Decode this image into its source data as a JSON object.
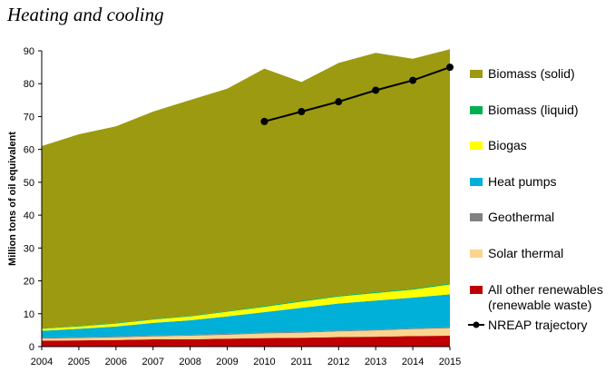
{
  "heading": "Heating and cooling",
  "chart_data": {
    "type": "area",
    "title": "",
    "ylabel": "Million tons of oil equivalent",
    "xlabel": "",
    "ylim": [
      0,
      90
    ],
    "yticks": [
      0,
      10,
      20,
      30,
      40,
      50,
      60,
      70,
      80,
      90
    ],
    "grid": false,
    "legend_position": "right",
    "stacked": true,
    "categories": [
      "2004",
      "2005",
      "2006",
      "2007",
      "2008",
      "2009",
      "2010",
      "2011",
      "2012",
      "2013",
      "2014",
      "2015"
    ],
    "series": [
      {
        "name": "All other renewables (renewable waste)",
        "color": "#c00000",
        "values": [
          1.8,
          1.9,
          2.0,
          2.2,
          2.2,
          2.4,
          2.6,
          2.7,
          2.9,
          3.0,
          3.2,
          3.3
        ]
      },
      {
        "name": "Solar thermal",
        "color": "#fbd58e",
        "values": [
          0.6,
          0.7,
          0.8,
          0.9,
          1.1,
          1.2,
          1.4,
          1.5,
          1.7,
          1.9,
          2.1,
          2.3
        ]
      },
      {
        "name": "Geothermal",
        "color": "#808080",
        "values": [
          0.3,
          0.3,
          0.3,
          0.3,
          0.3,
          0.3,
          0.3,
          0.3,
          0.3,
          0.3,
          0.3,
          0.3
        ]
      },
      {
        "name": "Heat pumps",
        "color": "#00b0d8",
        "values": [
          2.1,
          2.5,
          3.0,
          3.8,
          4.4,
          5.3,
          6.2,
          7.3,
          8.2,
          8.8,
          9.3,
          10.0
        ]
      },
      {
        "name": "Biogas",
        "color": "#ffff00",
        "values": [
          0.6,
          0.7,
          0.9,
          1.0,
          1.2,
          1.4,
          1.6,
          1.9,
          2.1,
          2.3,
          2.4,
          3.0
        ]
      },
      {
        "name": "Biomass (liquid)",
        "color": "#00b050",
        "values": [
          0.2,
          0.2,
          0.2,
          0.2,
          0.2,
          0.2,
          0.3,
          0.3,
          0.3,
          0.3,
          0.3,
          0.4
        ]
      },
      {
        "name": "Biomass (solid)",
        "color": "#9c9a10",
        "values": [
          55.4,
          58.3,
          59.8,
          63.1,
          65.6,
          67.7,
          72.2,
          66.5,
          70.8,
          72.8,
          70.0,
          71.2
        ]
      }
    ],
    "trajectory": {
      "name": "NREAP trajectory",
      "color": "#000000",
      "x": [
        "2010",
        "2011",
        "2012",
        "2013",
        "2014",
        "2015"
      ],
      "values": [
        68.5,
        71.5,
        74.5,
        78.0,
        81.0,
        85.0
      ]
    },
    "legend_order": [
      "Biomass (solid)",
      "Biomass (liquid)",
      "Biogas",
      "Heat pumps",
      "Geothermal",
      "Solar thermal",
      "All other renewables (renewable waste)",
      "NREAP trajectory"
    ],
    "legend_lines": {
      "All other renewables (renewable waste)": [
        "All other renewables",
        "(renewable waste)"
      ]
    }
  }
}
